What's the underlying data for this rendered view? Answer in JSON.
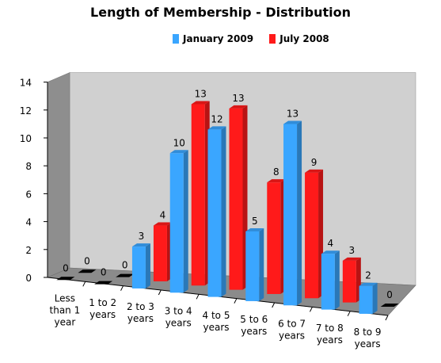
{
  "chart_data": {
    "type": "bar",
    "title": "Length of Membership - Distribution",
    "categories": [
      [
        "Less",
        "than 1",
        "year"
      ],
      [
        "1 to 2",
        "years"
      ],
      [
        "2 to 3",
        "years"
      ],
      [
        "3 to 4",
        "years"
      ],
      [
        "4 to 5",
        "years"
      ],
      [
        "5 to 6",
        "years"
      ],
      [
        "6 to 7",
        "years"
      ],
      [
        "7 to 8",
        "years"
      ],
      [
        "8 to 9",
        "years"
      ]
    ],
    "series": [
      {
        "name": "January 2009",
        "values": [
          0,
          0,
          3,
          10,
          12,
          5,
          13,
          4,
          2
        ],
        "color": "#3aa6ff"
      },
      {
        "name": "July 2008",
        "values": [
          0,
          0,
          4,
          13,
          13,
          8,
          9,
          3,
          0
        ],
        "color": "#ff1a1a"
      }
    ],
    "yticks": [
      0,
      2,
      4,
      6,
      8,
      10,
      12,
      14
    ],
    "ylim": [
      0,
      14
    ],
    "grid": false,
    "legend_position": "top",
    "style": "3d-clustered-bar"
  }
}
